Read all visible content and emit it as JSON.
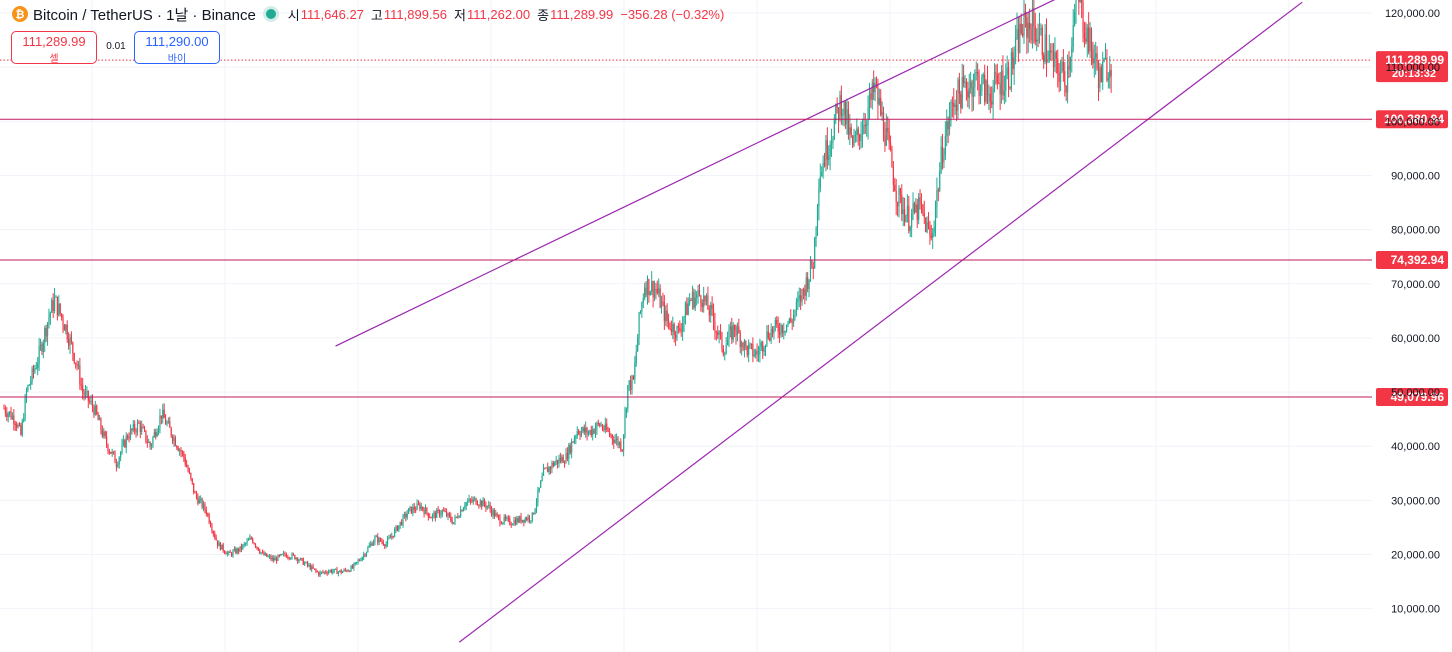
{
  "header": {
    "symbol": "Bitcoin / TetherUS · 1날 · Binance",
    "coin_glyph": "₿",
    "ohlc": [
      {
        "key": "시",
        "value": "111,646.27"
      },
      {
        "key": "고",
        "value": "111,899.56"
      },
      {
        "key": "저",
        "value": "111,262.00"
      },
      {
        "key": "종",
        "value": "111,289.99"
      }
    ],
    "change": "−356.28 (−0.32%)"
  },
  "trade": {
    "sell_price": "111,289.99",
    "sell_label": "셀",
    "spread": "0.01",
    "buy_price": "111,290.00",
    "buy_label": "바이"
  },
  "colors": {
    "up": "#22ab94",
    "down": "#f23645",
    "level_line": "#c2185b",
    "channel": "#9c27b0",
    "grid": "#f0f3fa"
  },
  "chart_data": {
    "type": "candlestick",
    "y_axis": {
      "ticks": [
        "10,000.00",
        "20,000.00",
        "30,000.00",
        "40,000.00",
        "50,000.00",
        "60,000.00",
        "70,000.00",
        "80,000.00",
        "90,000.00",
        "100,000.00",
        "110,000.00",
        "120,000.00"
      ],
      "range": [
        2000,
        122400
      ]
    },
    "grid": true,
    "current_price": {
      "value": 111289.99,
      "label": "111,289.99",
      "countdown": "20:13:32"
    },
    "horizontal_levels": [
      {
        "value": 100380.94,
        "label": "100,380.94"
      },
      {
        "value": 74392.94,
        "label": "74,392.94"
      },
      {
        "value": 49079.96,
        "label": "49,079.96"
      }
    ],
    "price_path": [
      [
        0,
        47000
      ],
      [
        2,
        45000
      ],
      [
        3,
        42000
      ],
      [
        4,
        50000
      ],
      [
        6,
        56000
      ],
      [
        8,
        64000
      ],
      [
        9,
        67000
      ],
      [
        11,
        62000
      ],
      [
        13,
        55000
      ],
      [
        14,
        50000
      ],
      [
        16,
        47000
      ],
      [
        18,
        41000
      ],
      [
        20,
        37000
      ],
      [
        22,
        42000
      ],
      [
        24,
        44000
      ],
      [
        26,
        40000
      ],
      [
        28,
        46000
      ],
      [
        30,
        42000
      ],
      [
        32,
        38000
      ],
      [
        34,
        31000
      ],
      [
        36,
        28000
      ],
      [
        38,
        22000
      ],
      [
        40,
        20000
      ],
      [
        42,
        21000
      ],
      [
        44,
        23000
      ],
      [
        46,
        20000
      ],
      [
        48,
        19000
      ],
      [
        50,
        20000
      ],
      [
        52,
        19500
      ],
      [
        54,
        18000
      ],
      [
        56,
        16500
      ],
      [
        58,
        17000
      ],
      [
        60,
        16800
      ],
      [
        62,
        17500
      ],
      [
        64,
        20000
      ],
      [
        66,
        23000
      ],
      [
        68,
        22000
      ],
      [
        70,
        25000
      ],
      [
        72,
        28000
      ],
      [
        74,
        29000
      ],
      [
        76,
        27000
      ],
      [
        78,
        28000
      ],
      [
        80,
        26000
      ],
      [
        82,
        29500
      ],
      [
        84,
        30000
      ],
      [
        86,
        29000
      ],
      [
        88,
        26500
      ],
      [
        90,
        26000
      ],
      [
        92,
        26500
      ],
      [
        94,
        27000
      ],
      [
        96,
        35000
      ],
      [
        98,
        37000
      ],
      [
        100,
        38000
      ],
      [
        102,
        43000
      ],
      [
        104,
        42500
      ],
      [
        106,
        44000
      ],
      [
        108,
        42000
      ],
      [
        110,
        40000
      ],
      [
        111,
        51000
      ],
      [
        112,
        52000
      ],
      [
        113,
        63000
      ],
      [
        114,
        70000
      ],
      [
        116,
        69000
      ],
      [
        118,
        63000
      ],
      [
        120,
        61000
      ],
      [
        122,
        67000
      ],
      [
        124,
        68000
      ],
      [
        126,
        64000
      ],
      [
        128,
        58000
      ],
      [
        130,
        62000
      ],
      [
        132,
        58000
      ],
      [
        134,
        57000
      ],
      [
        136,
        61000
      ],
      [
        138,
        62000
      ],
      [
        140,
        63000
      ],
      [
        142,
        68000
      ],
      [
        144,
        74000
      ],
      [
        145,
        90000
      ],
      [
        147,
        97000
      ],
      [
        149,
        104000
      ],
      [
        151,
        95000
      ],
      [
        153,
        100000
      ],
      [
        155,
        106000
      ],
      [
        157,
        97000
      ],
      [
        159,
        86000
      ],
      [
        161,
        82000
      ],
      [
        163,
        84000
      ],
      [
        165,
        78000
      ],
      [
        167,
        95000
      ],
      [
        169,
        104000
      ],
      [
        171,
        106000
      ],
      [
        173,
        108000
      ],
      [
        175,
        105000
      ],
      [
        177,
        107000
      ],
      [
        179,
        109000
      ],
      [
        181,
        117000
      ],
      [
        183,
        118000
      ],
      [
        185,
        114000
      ],
      [
        187,
        110000
      ],
      [
        189,
        108000
      ],
      [
        191,
        123000
      ],
      [
        193,
        115000
      ],
      [
        195,
        108000
      ],
      [
        196,
        110000
      ],
      [
        197,
        111290
      ]
    ],
    "channel_lines": [
      {
        "from": [
          59,
          58500
        ],
        "to": [
          188,
          123000
        ]
      },
      {
        "from": [
          81,
          3800
        ],
        "to": [
          231,
          122000
        ]
      }
    ]
  }
}
